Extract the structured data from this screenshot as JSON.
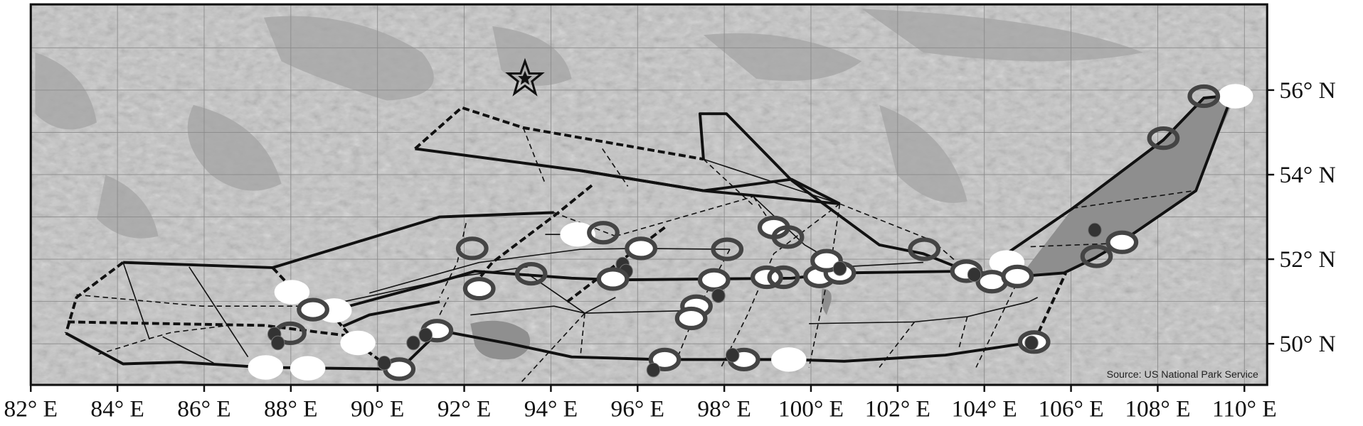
{
  "map": {
    "source_note": "Source: US National Park Service",
    "x_ticks": [
      "82° E",
      "84° E",
      "86° E",
      "88° E",
      "90° E",
      "92° E",
      "94° E",
      "96° E",
      "98° E",
      "100° E",
      "102° E",
      "104° E",
      "106° E",
      "108° E",
      "110° E"
    ],
    "y_ticks": [
      "56° N",
      "54° N",
      "52° N",
      "50° N"
    ],
    "marker_symbol": "star-icon",
    "colors": {
      "terrain": "#c4c4c4",
      "terrain_dark": "#9a9a9a",
      "lake": "#8f8f8f",
      "route": "#111111",
      "ring": "#444444",
      "dot": "#333333",
      "marker_white": "#ffffff"
    }
  }
}
